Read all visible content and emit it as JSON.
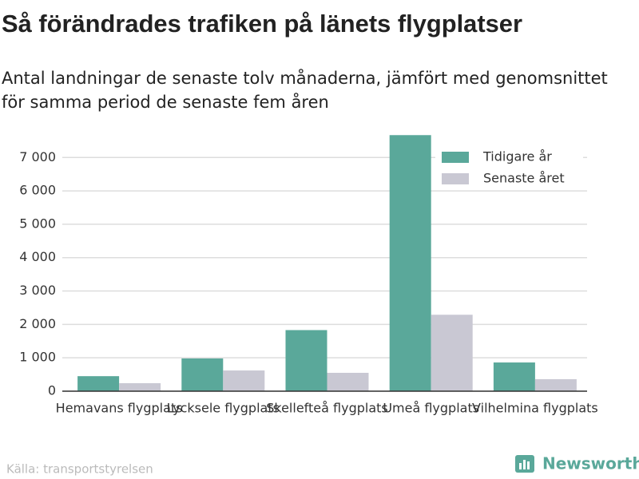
{
  "chart_data": {
    "type": "bar",
    "title": "Så förändrades trafiken på länets flygplatser",
    "subtitle": [
      "Antal landningar de senaste tolv månaderna, jämfört med genomsnittet",
      "för samma period de senaste fem åren"
    ],
    "categories": [
      "Hemavans flygplats",
      "Lycksele flygplats",
      "Skellefteå flygplats",
      "Umeå flygplats",
      "Vilhelmina flygplats"
    ],
    "series": [
      {
        "name": "Tidigare år",
        "color": "#5aa89a",
        "values": [
          450,
          980,
          1830,
          7670,
          860
        ]
      },
      {
        "name": "Senaste året",
        "color": "#c9c8d3",
        "values": [
          240,
          620,
          550,
          2290,
          360
        ]
      }
    ],
    "ylim": [
      0,
      7700
    ],
    "yticks": [
      0,
      {
        "value": 1000,
        "label": "1 000"
      },
      {
        "value": 2000,
        "label": "2 000"
      },
      {
        "value": 3000,
        "label": "3 000"
      },
      {
        "value": 4000,
        "label": "4 000"
      },
      {
        "value": 5000,
        "label": "5 000"
      },
      {
        "value": 6000,
        "label": "6 000"
      },
      {
        "value": 7000,
        "label": "7 000"
      }
    ],
    "grid": true,
    "legend": "top-right",
    "source": "Källa: transportstyrelsen",
    "logo": "Newsworthy"
  }
}
